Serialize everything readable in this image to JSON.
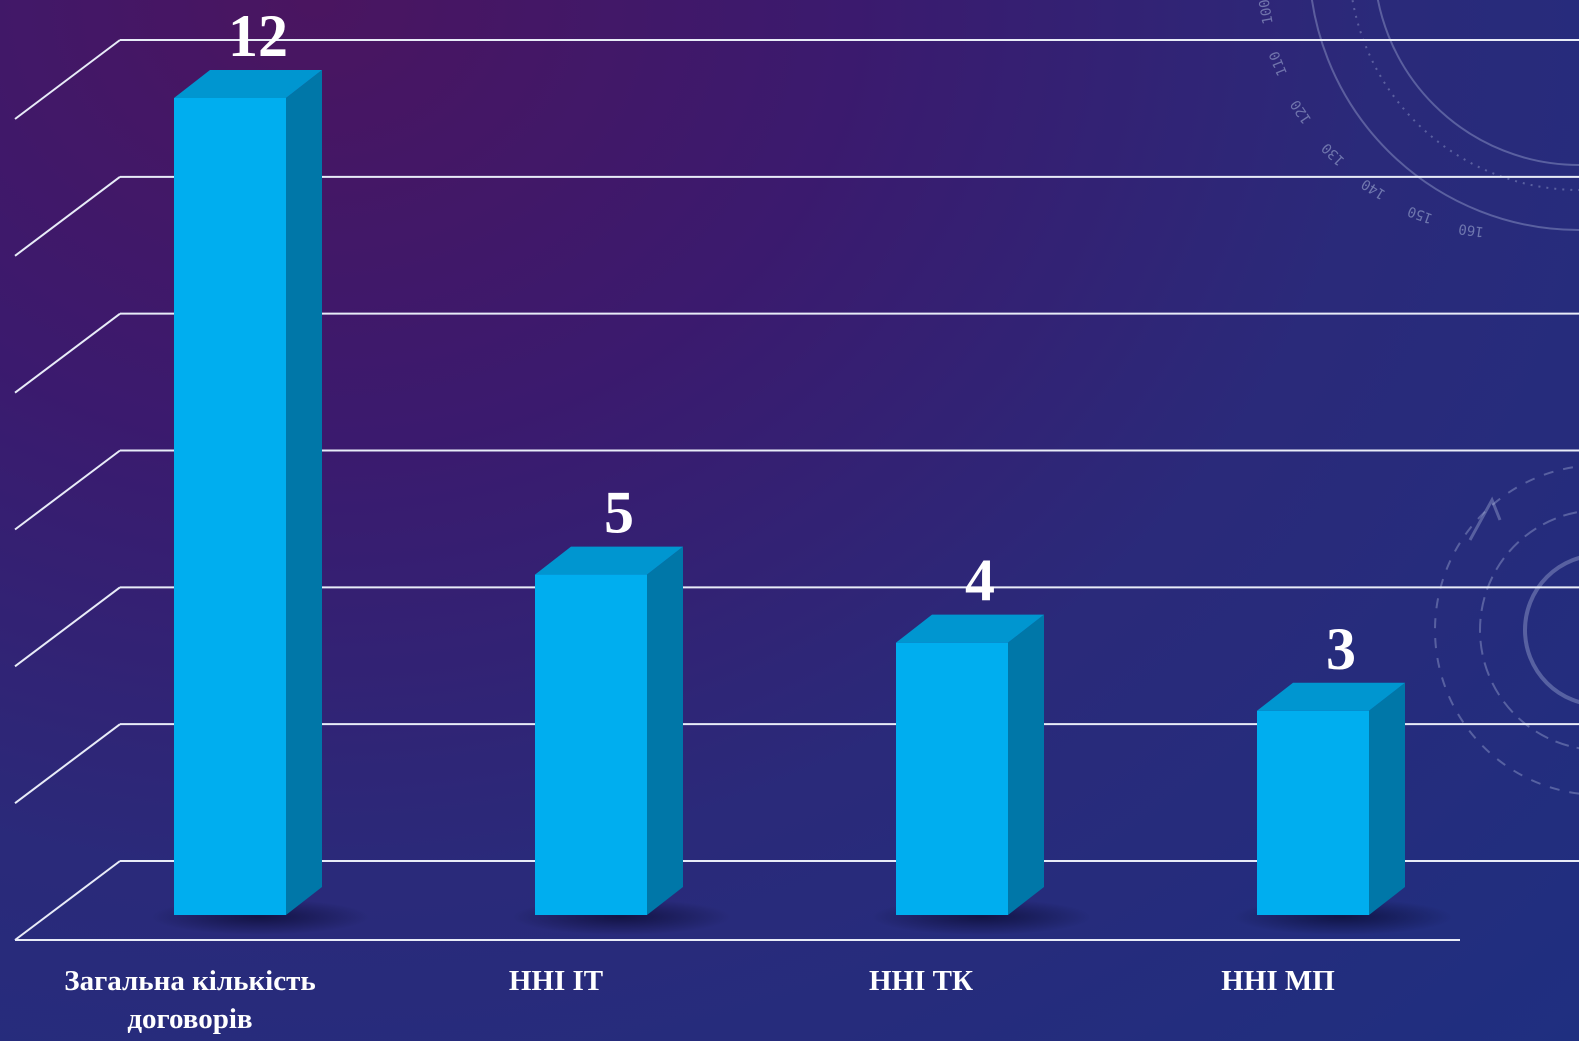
{
  "chart_data": {
    "type": "bar",
    "categories": [
      "Загальна кількість договорів",
      "ННІ ІТ",
      "ННІ ТК",
      "ННІ  МП"
    ],
    "category_lines": [
      [
        "Загальна кількість",
        "договорів"
      ],
      [
        "ННІ ІТ"
      ],
      [
        "ННІ ТК"
      ],
      [
        "ННІ  МП"
      ]
    ],
    "values": [
      12,
      5,
      4,
      3
    ],
    "data_labels": [
      "12",
      "5",
      "4",
      "3"
    ],
    "ylim": [
      0,
      12
    ],
    "grid": true,
    "title": "",
    "xlabel": "",
    "ylabel": "",
    "colors": {
      "front": "#00aeef",
      "side": "#0077a8",
      "top": "#0096d0",
      "grid": "#e8ecf8"
    }
  },
  "decor": {
    "dial_labels": [
      "160",
      "150",
      "140",
      "130",
      "120",
      "110",
      "100"
    ]
  }
}
